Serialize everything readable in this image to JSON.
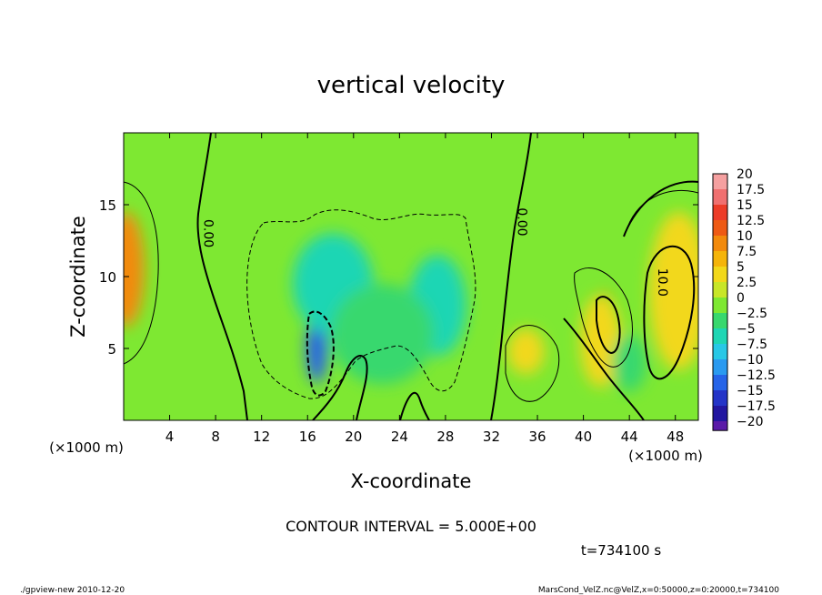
{
  "chart_data": {
    "type": "heatmap",
    "title": "vertical velocity",
    "xlabel": "X-coordinate",
    "ylabel": "Z-coordinate",
    "x_unit_left": "(×1000 m)",
    "x_unit_right": "(×1000 m)",
    "xlim": [
      0,
      50
    ],
    "ylim": [
      0,
      20
    ],
    "x_ticks": [
      4,
      8,
      12,
      16,
      20,
      24,
      28,
      32,
      36,
      40,
      44,
      48
    ],
    "y_ticks": [
      5,
      10,
      15
    ],
    "colorbar": {
      "labels": [
        "20",
        "17.5",
        "15",
        "12.5",
        "10",
        "7.5",
        "5",
        "2.5",
        "0",
        "−2.5",
        "−5",
        "−7.5",
        "−10",
        "−12.5",
        "−15",
        "−17.5",
        "−20"
      ],
      "values": [
        20,
        17.5,
        15,
        12.5,
        10,
        7.5,
        5,
        2.5,
        0,
        -2.5,
        -5,
        -7.5,
        -10,
        -12.5,
        -15,
        -17.5,
        -20
      ],
      "colors": [
        "#f5a0a0",
        "#f07070",
        "#ec3c28",
        "#ee5a14",
        "#f28a0c",
        "#f5b40a",
        "#f2d81a",
        "#c8e628",
        "#7ee832",
        "#38d86e",
        "#1ed6b4",
        "#28c8e6",
        "#2a9af0",
        "#2664e8",
        "#2434c8",
        "#2216a0",
        "#5a1aa8"
      ]
    },
    "contour_labels": [
      {
        "text": "0.00",
        "x": 7.0,
        "z": 13.0
      },
      {
        "text": "0.00",
        "x": 34.3,
        "z": 13.8
      },
      {
        "text": "10.0",
        "x": 46.5,
        "z": 9.6
      }
    ],
    "blobs": [
      {
        "x": 0.2,
        "z": 10.5,
        "value": 9,
        "sx": 1.6,
        "sz": 4.0
      },
      {
        "x": 16.8,
        "z": 5.0,
        "value": -13,
        "sx": 0.9,
        "sz": 2.4
      },
      {
        "x": 18.2,
        "z": 9.5,
        "value": -5,
        "sx": 3.5,
        "sz": 3.5
      },
      {
        "x": 27.3,
        "z": 8.0,
        "value": -4,
        "sx": 2.5,
        "sz": 3.5
      },
      {
        "x": 22.5,
        "z": 6.0,
        "value": -3,
        "sx": 4.5,
        "sz": 3.5
      },
      {
        "x": 35.0,
        "z": 4.8,
        "value": 5,
        "sx": 1.6,
        "sz": 1.6
      },
      {
        "x": 41.8,
        "z": 7.3,
        "value": 11,
        "sx": 0.8,
        "sz": 1.6
      },
      {
        "x": 41.5,
        "z": 5.5,
        "value": 4,
        "sx": 1.8,
        "sz": 3.2
      },
      {
        "x": 48.3,
        "z": 9.5,
        "value": 16,
        "sx": 1.2,
        "sz": 3.0
      },
      {
        "x": 48.3,
        "z": 9.0,
        "value": 6,
        "sx": 2.6,
        "sz": 5.5
      },
      {
        "x": 44.0,
        "z": 4.0,
        "value": -2,
        "sx": 1.5,
        "sz": 2.0
      }
    ],
    "contour_interval_text": "CONTOUR INTERVAL = 5.000E+00",
    "time_text": "t=734100 s"
  },
  "footer": {
    "left": "./gpview-new  2010-12-20",
    "right": "MarsCond_VelZ.nc@VelZ,x=0:50000,z=0:20000,t=734100"
  }
}
